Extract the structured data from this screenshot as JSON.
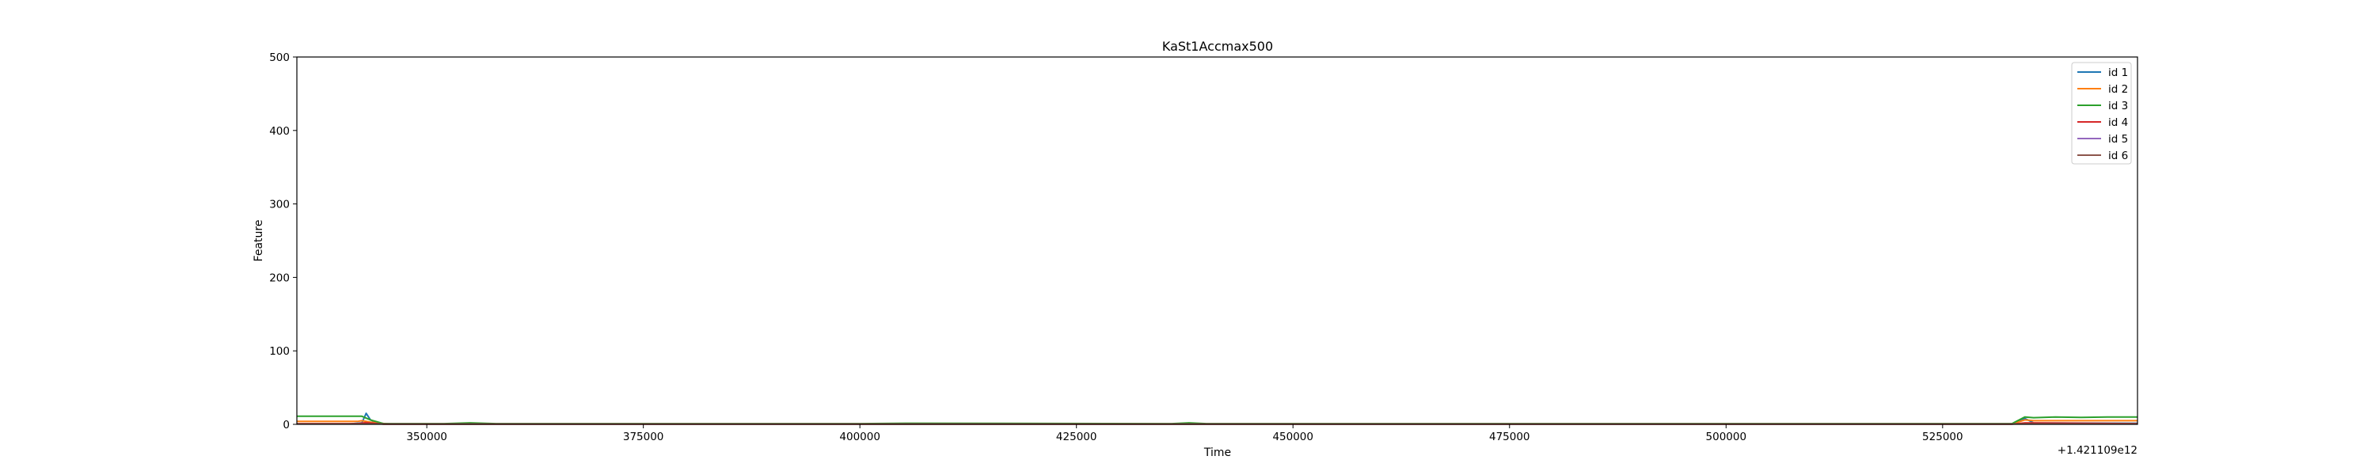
{
  "chart_data": {
    "type": "line",
    "title": "KaSt1Accmax500",
    "xlabel": "Time",
    "ylabel": "Feature",
    "x_offset_label": "+1.421109e12",
    "xlim": [
      335000,
      547500
    ],
    "ylim": [
      0,
      500
    ],
    "xticks": [
      350000,
      375000,
      400000,
      425000,
      450000,
      475000,
      500000,
      525000
    ],
    "yticks": [
      0,
      100,
      200,
      300,
      400,
      500
    ],
    "legend_position": "upper right",
    "grid": false,
    "series": [
      {
        "name": "id 1",
        "color": "#1f77b4",
        "x": [
          335000,
          341000,
          342500,
          343000,
          343500,
          344500,
          346000,
          400000,
          450000,
          500000,
          533000,
          534500,
          535500,
          547500
        ],
        "y": [
          0.5,
          0.5,
          2,
          15,
          6,
          1,
          0.5,
          0.5,
          0.5,
          0.5,
          0.5,
          8,
          2,
          1.5
        ]
      },
      {
        "name": "id 2",
        "color": "#ff7f0e",
        "x": [
          335000,
          342000,
          342500,
          343500,
          345500,
          400000,
          450000,
          533000,
          534500,
          535500,
          540000,
          547500
        ],
        "y": [
          4,
          4,
          5,
          3,
          0.5,
          0.5,
          0.5,
          0.5,
          6,
          5,
          5,
          5
        ]
      },
      {
        "name": "id 3",
        "color": "#2ca02c",
        "x": [
          335000,
          342000,
          342500,
          343500,
          345000,
          352000,
          355000,
          358000,
          400000,
          406000,
          436000,
          438000,
          440000,
          450000,
          500000,
          533000,
          534500,
          535500,
          538000,
          541000,
          544000,
          547500
        ],
        "y": [
          11,
          11,
          11,
          6,
          1,
          1,
          2,
          1,
          1,
          1.5,
          1,
          2,
          1,
          1,
          1,
          1,
          10,
          9,
          10,
          9.5,
          10,
          10
        ]
      },
      {
        "name": "id 4",
        "color": "#d62728",
        "x": [
          335000,
          342000,
          343000,
          345000,
          400000,
          450000,
          533000,
          534500,
          547500
        ],
        "y": [
          1,
          1,
          2.5,
          0.3,
          0.3,
          0.3,
          0.3,
          2,
          1
        ]
      },
      {
        "name": "id 5",
        "color": "#9467bd",
        "x": [
          335000,
          400000,
          450000,
          547500
        ],
        "y": [
          0.5,
          0.5,
          0.5,
          0.5
        ]
      },
      {
        "name": "id 6",
        "color": "#8c564b",
        "x": [
          335000,
          400000,
          450000,
          547500
        ],
        "y": [
          0.5,
          0.5,
          0.5,
          0.5
        ]
      }
    ]
  }
}
